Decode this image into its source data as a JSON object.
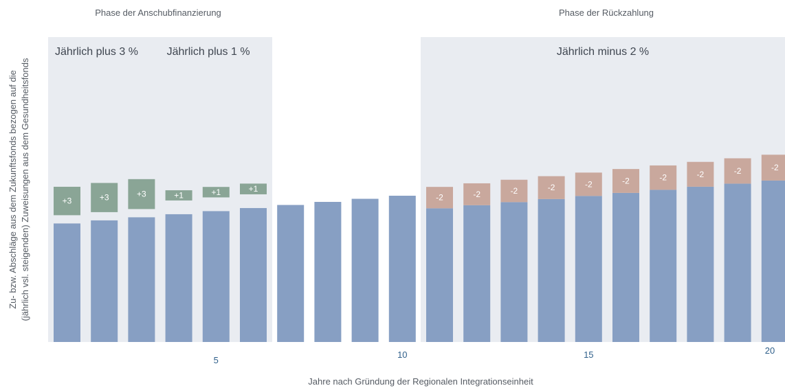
{
  "chart_data": {
    "type": "bar",
    "phase_labels": {
      "startup": "Phase der Anschubfinanzierung",
      "repayment": "Phase der Rückzahlung"
    },
    "bands": [
      {
        "label": "Jährlich plus 3 %",
        "from_year": 1,
        "to_year": 3
      },
      {
        "label": "Jährlich plus 1 %",
        "from_year": 4,
        "to_year": 6
      },
      {
        "label": "Jährlich minus 2 %",
        "from_year": 11,
        "to_year": 20
      }
    ],
    "xlabel": "Jahre nach Gründung der Regionalen Integrationseinheit",
    "ylabel_lines": [
      "Zu- bzw. Abschläge aus dem Zukunftsfonds bezogen auf die",
      "(jährlich vsl. steigenden) Zuweisungen aus dem Gesundheitsfonds"
    ],
    "x_ticks": [
      {
        "year": 5,
        "label": "5"
      },
      {
        "year": 10,
        "label": "10"
      },
      {
        "year": 15,
        "label": "15"
      },
      {
        "year": 20,
        "label": "20"
      }
    ],
    "years": [
      1,
      2,
      3,
      4,
      5,
      6,
      7,
      8,
      9,
      10,
      11,
      12,
      13,
      14,
      15,
      16,
      17,
      18,
      19,
      20
    ],
    "base_values": [
      100,
      102.6,
      105.2,
      107.8,
      110.4,
      113,
      115.6,
      118.2,
      120.8,
      123.4,
      112.8,
      115.4,
      118,
      120.6,
      123.2,
      125.8,
      128.4,
      131,
      133.6,
      136.2
    ],
    "adjustments": [
      3,
      3,
      3,
      1,
      1,
      1,
      0,
      0,
      0,
      0,
      -2,
      -2,
      -2,
      -2,
      -2,
      -2,
      -2,
      -2,
      -2,
      -2
    ],
    "adjustment_labels": [
      "+3",
      "+3",
      "+3",
      "+1",
      "+1",
      "+1",
      "",
      "",
      "",
      "",
      "-2",
      "-2",
      "-2",
      "-2",
      "-2",
      "-2",
      "-2",
      "-2",
      "-2",
      "-2"
    ],
    "colors": {
      "base": "#879fc3",
      "plus": "#8aa596",
      "minus": "#c9a89d",
      "band": "#e9ecf1"
    },
    "grid": false
  }
}
